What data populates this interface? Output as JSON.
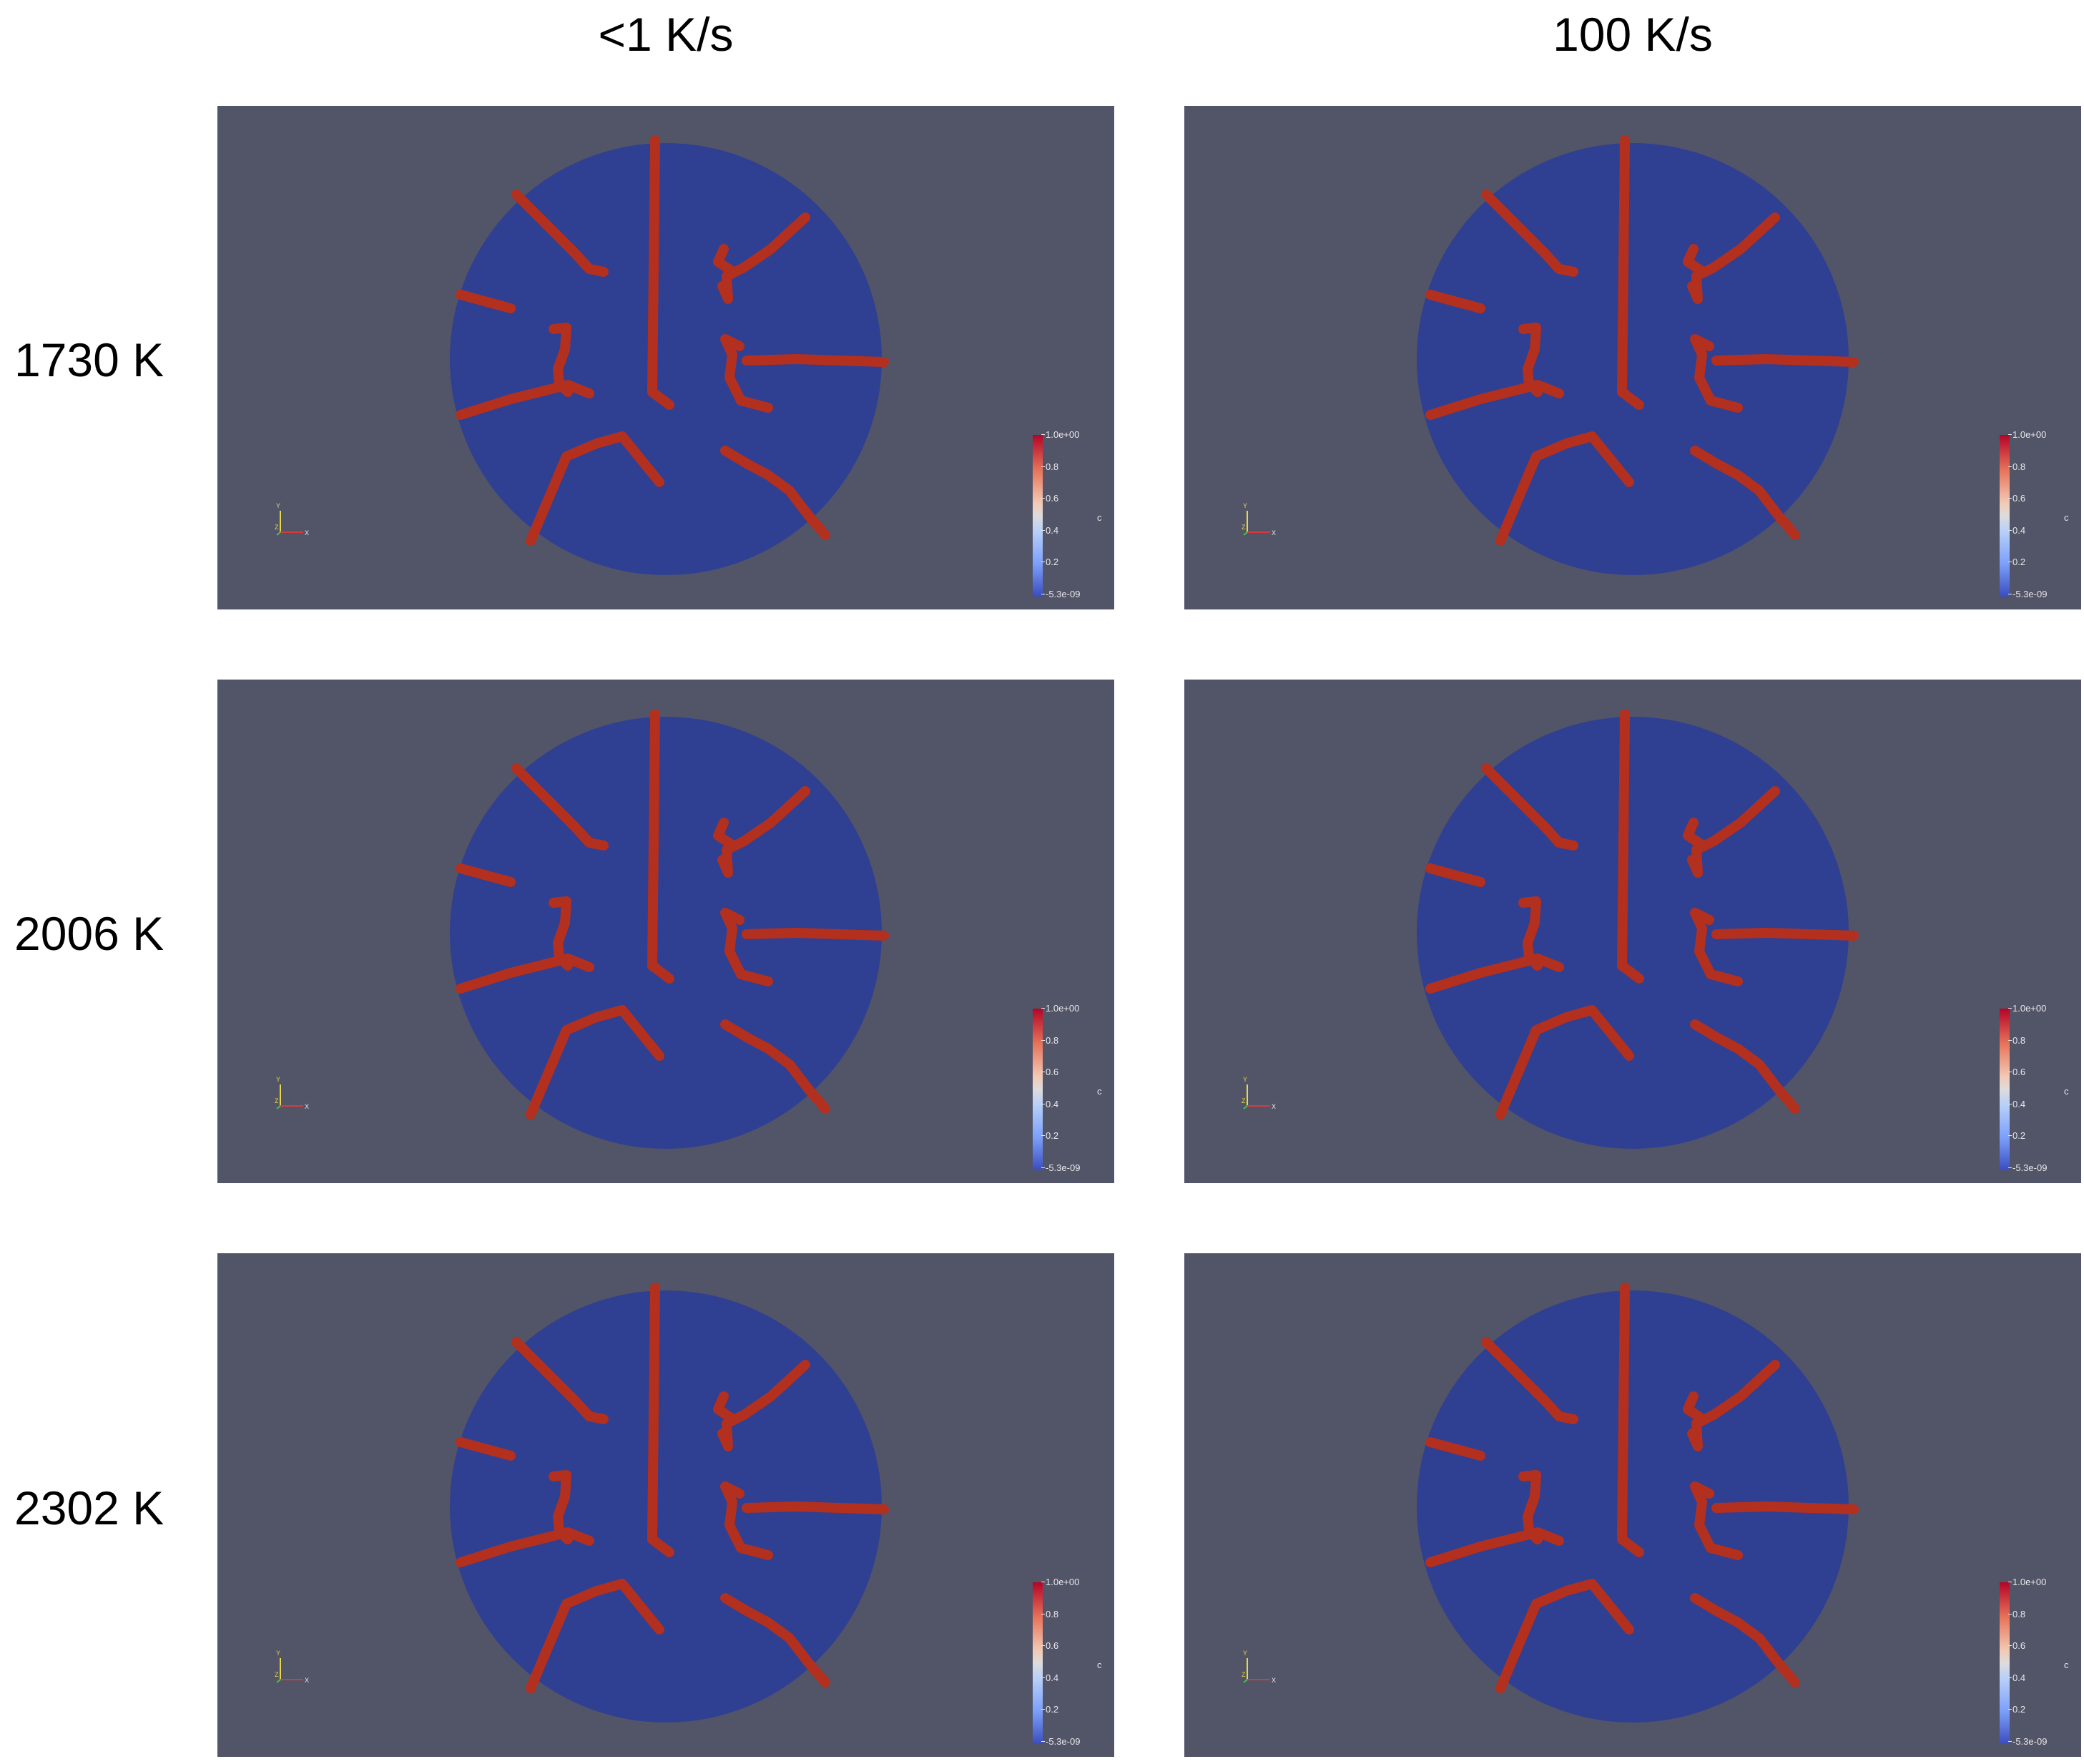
{
  "columns": [
    "<1 K/s",
    "100 K/s"
  ],
  "rows": [
    "1730 K",
    "2006 K",
    "2302 K"
  ],
  "colorbar": {
    "ticks": [
      "1.0e+00",
      "0.8",
      "0.6",
      "0.4",
      "0.2",
      "-5.3e-09"
    ],
    "title": "c",
    "colors": {
      "high": "#b40426",
      "mid": "#dddcdc",
      "low": "#3b4cc0"
    }
  },
  "axes_triad": {
    "labels": [
      "Y",
      "Z",
      "X"
    ]
  },
  "colors": {
    "background": "#525468",
    "domain": "#2f3f92",
    "crack": "#b3301f"
  },
  "panels": [
    {
      "row": 0,
      "col": 0
    },
    {
      "row": 0,
      "col": 1
    },
    {
      "row": 1,
      "col": 0
    },
    {
      "row": 1,
      "col": 1
    },
    {
      "row": 2,
      "col": 0
    },
    {
      "row": 2,
      "col": 1
    }
  ]
}
